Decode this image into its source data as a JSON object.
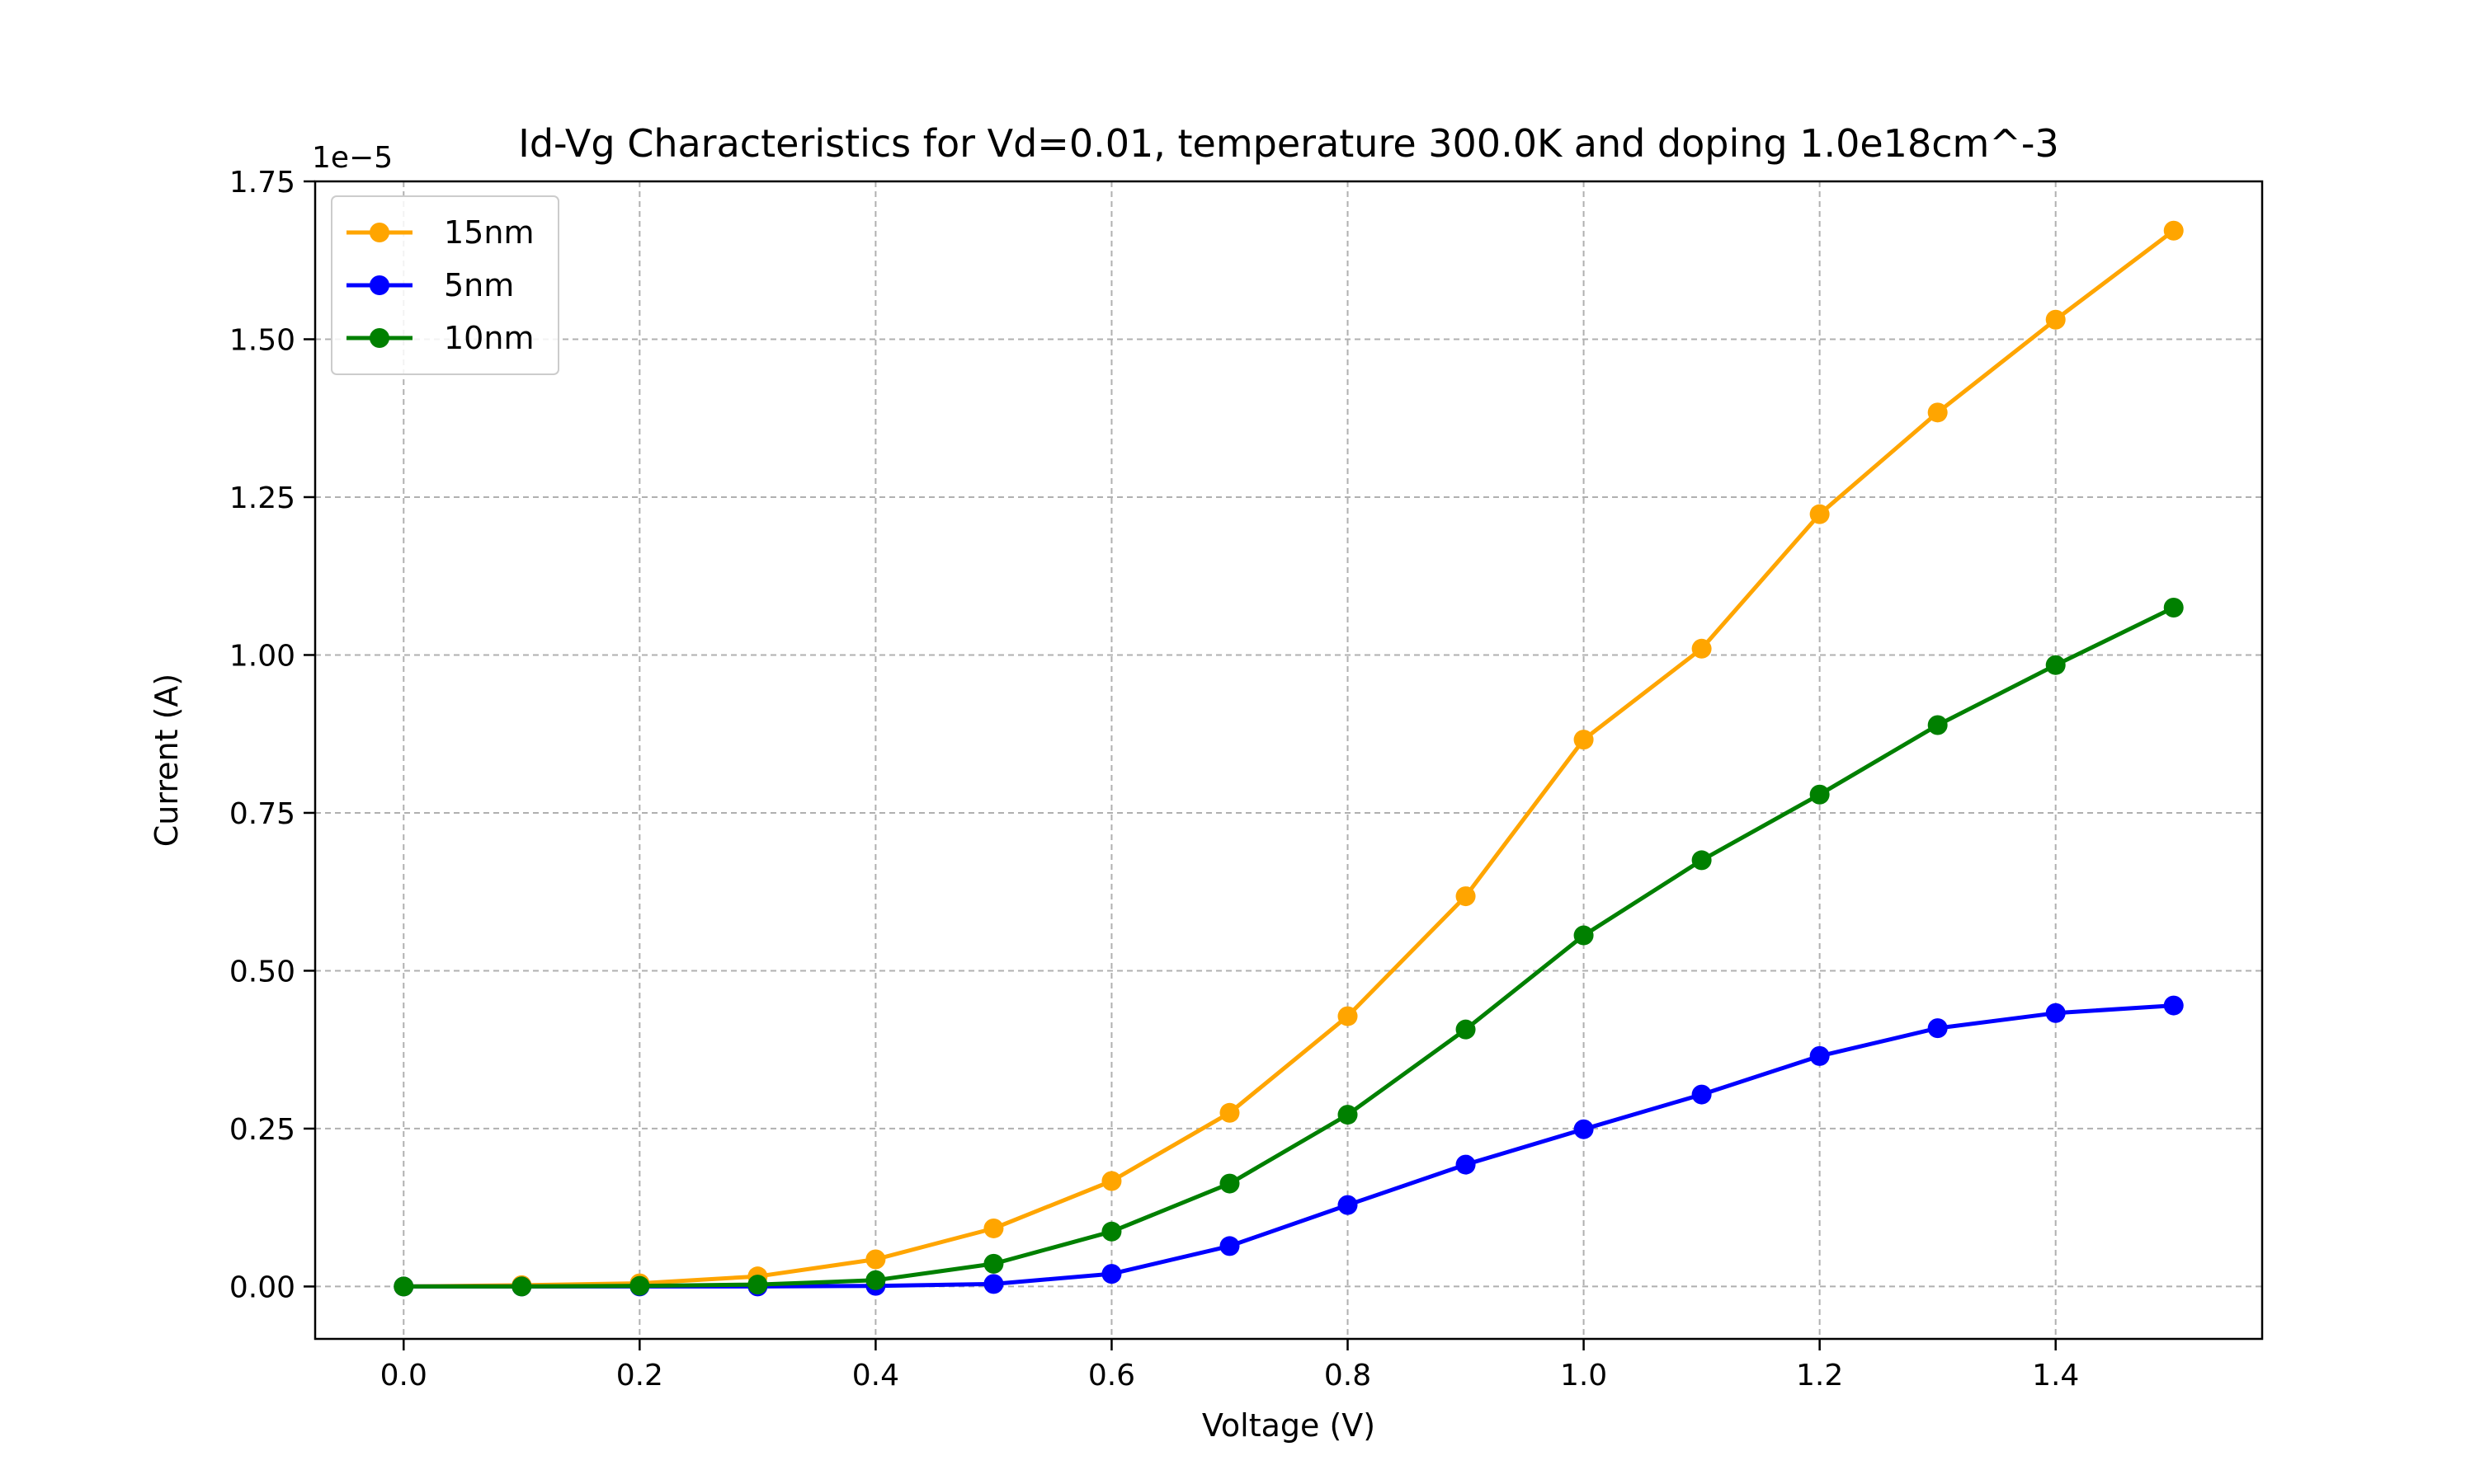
{
  "chart_data": {
    "type": "line",
    "title": "Id-Vg Characteristics for Vd=0.01, temperature 300.0K and doping 1.0e18cm^-3",
    "xlabel": "Voltage (V)",
    "ylabel": "Current (A)",
    "y_offset_label": "1e−5",
    "xlim": [
      -0.075,
      1.575
    ],
    "ylim": [
      -0.083,
      1.75
    ],
    "x_ticks": [
      0.0,
      0.2,
      0.4,
      0.6,
      0.8,
      1.0,
      1.2,
      1.4
    ],
    "x_tick_labels": [
      "0.0",
      "0.2",
      "0.4",
      "0.6",
      "0.8",
      "1.0",
      "1.2",
      "1.4"
    ],
    "y_ticks": [
      0.0,
      0.25,
      0.5,
      0.75,
      1.0,
      1.25,
      1.5,
      1.75
    ],
    "y_tick_labels": [
      "0.00",
      "0.25",
      "0.50",
      "0.75",
      "1.00",
      "1.25",
      "1.50",
      "1.75"
    ],
    "grid": true,
    "legend_position": "top-left",
    "x": [
      0.0,
      0.1,
      0.2,
      0.3,
      0.4,
      0.5,
      0.6,
      0.7,
      0.8,
      0.9,
      1.0,
      1.1,
      1.2,
      1.3,
      1.4,
      1.5
    ],
    "series": [
      {
        "name": "15nm",
        "color": "#ffa500",
        "values": [
          0.0,
          0.002,
          0.005,
          0.016,
          0.043,
          0.092,
          0.167,
          0.275,
          0.428,
          0.618,
          0.866,
          1.01,
          1.223,
          1.384,
          1.531,
          1.672
        ]
      },
      {
        "name": "5nm",
        "color": "#0000ff",
        "values": [
          0.0,
          0.0,
          0.0,
          0.0,
          0.001,
          0.004,
          0.02,
          0.064,
          0.129,
          0.193,
          0.249,
          0.304,
          0.365,
          0.409,
          0.433,
          0.445
        ]
      },
      {
        "name": "10nm",
        "color": "#008000",
        "values": [
          0.0,
          0.0,
          0.001,
          0.003,
          0.01,
          0.036,
          0.087,
          0.163,
          0.272,
          0.407,
          0.556,
          0.675,
          0.779,
          0.889,
          0.984,
          1.075
        ]
      }
    ]
  }
}
